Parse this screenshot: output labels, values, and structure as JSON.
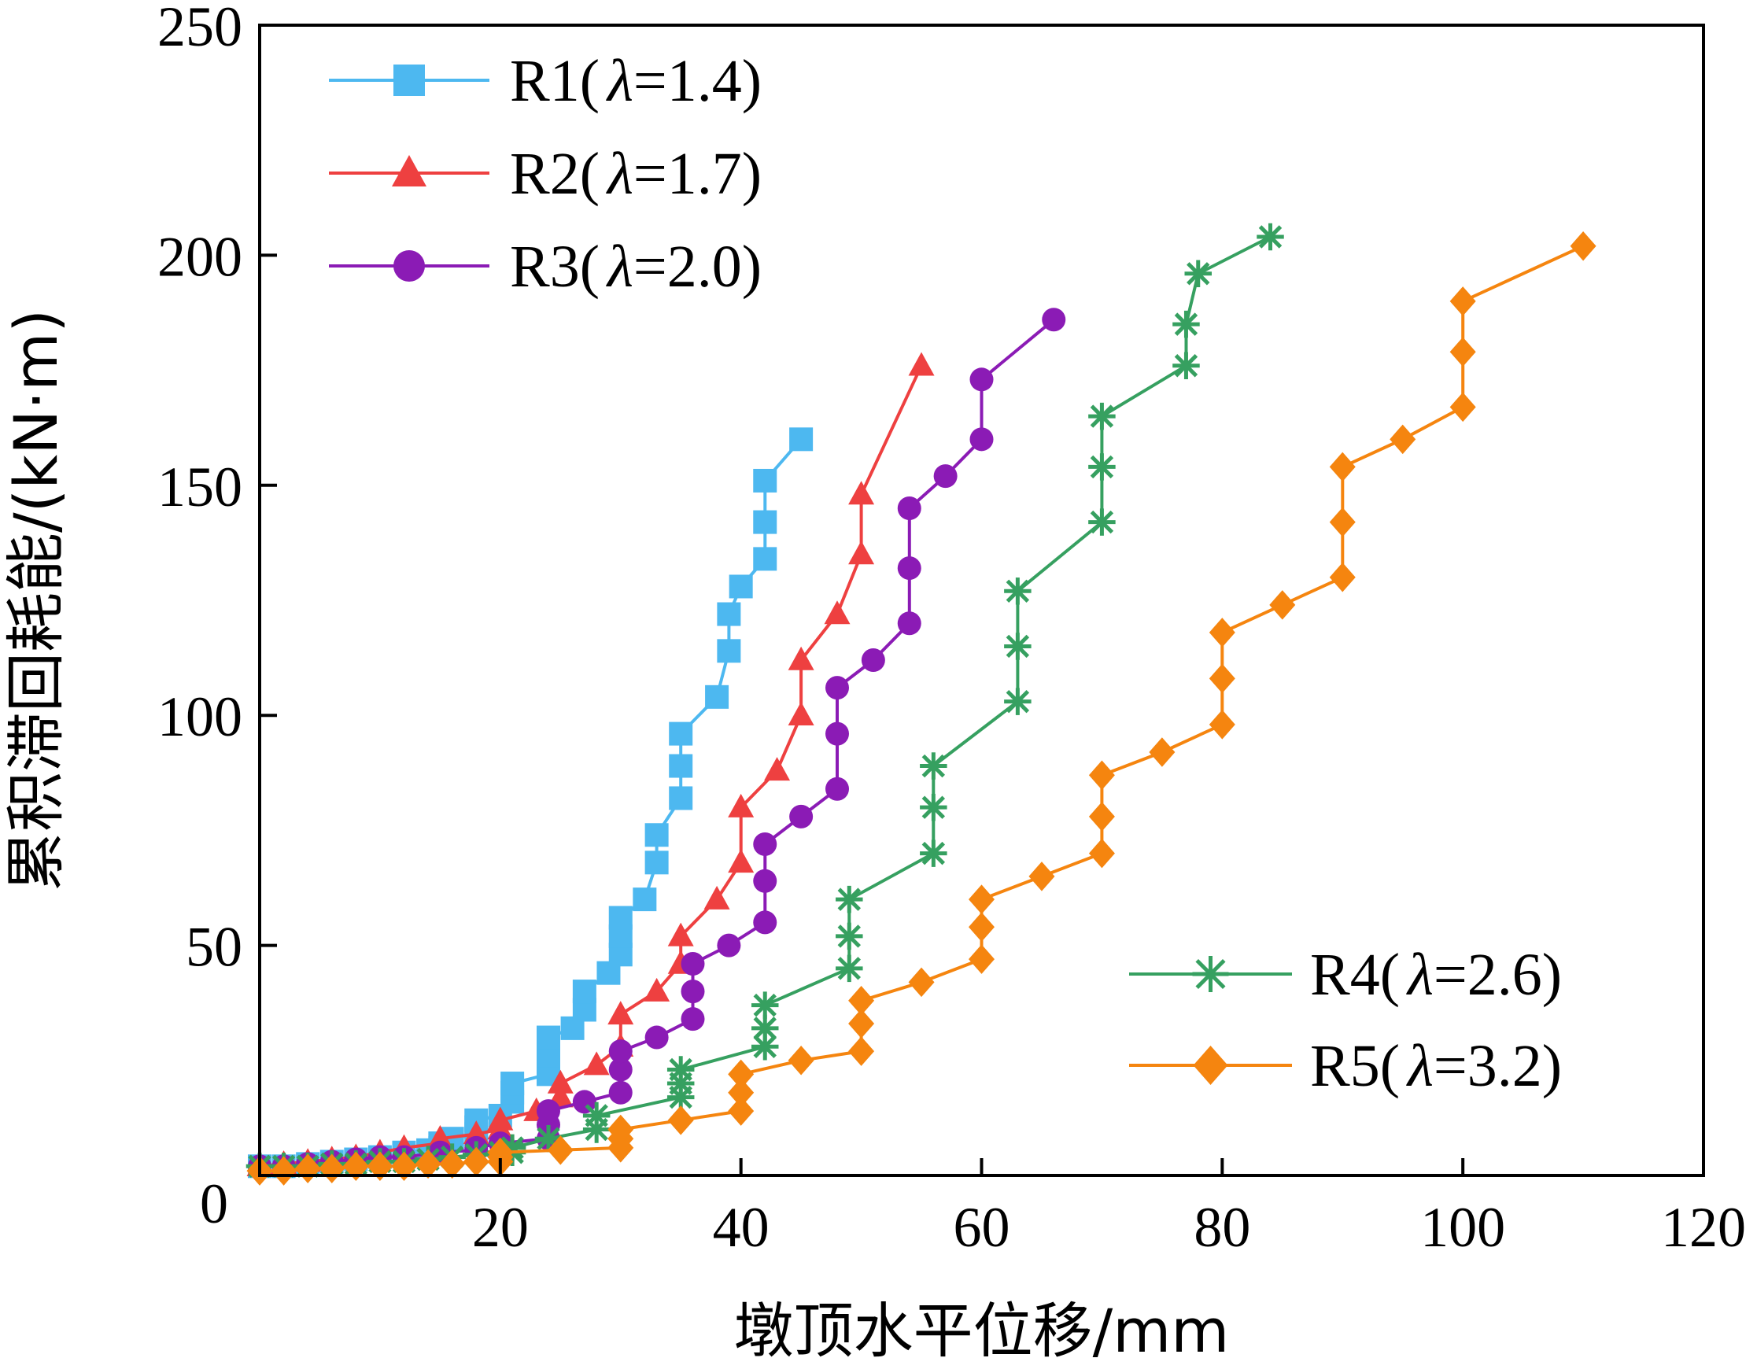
{
  "chart_data": {
    "type": "line",
    "xlabel": "墩顶水平位移/mm",
    "ylabel": "累积滞回耗能/(kN·m)",
    "xlim": [
      0,
      120
    ],
    "ylim": [
      0,
      250
    ],
    "xticks": [
      20,
      40,
      60,
      80,
      100,
      120
    ],
    "yticks": [
      0,
      50,
      100,
      150,
      200,
      250
    ],
    "grid": false,
    "legend_groups": [
      "top-left",
      "bottom-right"
    ],
    "series": [
      {
        "name_prefix": "R1(",
        "name_param": "λ",
        "name_suffix": "=1.4)",
        "color": "#4db8f0",
        "marker": "square",
        "legend_group": "top-left",
        "x": [
          0,
          2,
          4,
          6,
          8,
          10,
          12,
          12,
          14,
          15,
          15,
          16,
          18,
          18,
          18,
          20,
          21,
          21,
          21,
          24,
          24,
          24,
          26,
          27,
          27,
          29,
          30,
          30,
          30,
          32,
          33,
          33,
          35,
          35,
          35,
          38,
          39,
          39,
          40,
          42,
          42,
          42,
          45
        ],
        "y": [
          2,
          2,
          2.5,
          3,
          3.5,
          4,
          4.5,
          5,
          5.5,
          6,
          7,
          8,
          9,
          10.5,
          12,
          13,
          16,
          18,
          20,
          22,
          26,
          30,
          32,
          36,
          40,
          44,
          48,
          52,
          56,
          60,
          68,
          74,
          82,
          89,
          96,
          104,
          114,
          122,
          128,
          134,
          142,
          151,
          160
        ]
      },
      {
        "name_prefix": "R2(",
        "name_param": "λ",
        "name_suffix": "=1.7)",
        "color": "#ee4040",
        "marker": "triangle",
        "legend_group": "top-left",
        "x": [
          0,
          2,
          4,
          6,
          8,
          10,
          12,
          15,
          15,
          18,
          20,
          20,
          23,
          25,
          25,
          28,
          30,
          30,
          33,
          35,
          35,
          38,
          40,
          40,
          43,
          45,
          45,
          48,
          50,
          50,
          55
        ],
        "y": [
          2,
          2.5,
          3,
          3.5,
          4,
          5,
          6,
          7,
          8,
          9,
          10,
          12,
          14,
          17,
          20,
          24,
          28,
          35,
          40,
          46,
          52,
          60,
          68,
          80,
          88,
          100,
          112,
          122,
          135,
          148,
          176
        ]
      },
      {
        "name_prefix": "R3(",
        "name_param": "λ",
        "name_suffix": "=2.0)",
        "color": "#8b1bb5",
        "marker": "circle",
        "legend_group": "top-left",
        "x": [
          0,
          2,
          4,
          6,
          8,
          10,
          12,
          15,
          18,
          18,
          20,
          24,
          24,
          24,
          27,
          30,
          30,
          30,
          33,
          36,
          36,
          36,
          39,
          42,
          42,
          42,
          45,
          48,
          48,
          48,
          51,
          54,
          54,
          54,
          57,
          60,
          60,
          66
        ],
        "y": [
          2,
          2,
          2.5,
          3,
          3.5,
          4,
          4,
          5,
          5.5,
          6,
          7,
          8,
          11,
          14,
          16,
          18,
          23,
          27,
          30,
          34,
          40,
          46,
          50,
          55,
          64,
          72,
          78,
          84,
          96,
          106,
          112,
          120,
          132,
          145,
          152,
          160,
          173,
          186
        ]
      },
      {
        "name_prefix": "R4(",
        "name_param": "λ",
        "name_suffix": "=2.6)",
        "color": "#36a060",
        "marker": "asterisk",
        "legend_group": "bottom-right",
        "x": [
          0,
          2,
          4,
          6,
          8,
          10,
          12,
          14,
          16,
          18,
          20,
          21,
          21,
          24,
          28,
          28,
          35,
          35,
          35,
          42,
          42,
          42,
          49,
          49,
          49,
          56,
          56,
          56,
          63,
          63,
          63,
          70,
          70,
          70,
          77,
          77,
          78,
          84
        ],
        "y": [
          2,
          2,
          2,
          2.5,
          2.5,
          3,
          3,
          3.5,
          4,
          4.5,
          5,
          5,
          6,
          8,
          10,
          13,
          17,
          20,
          23,
          28,
          32,
          37,
          45,
          52,
          60,
          70,
          80,
          89,
          103,
          115,
          127,
          142,
          154,
          165,
          176,
          185,
          196,
          204
        ]
      },
      {
        "name_prefix": "R5(",
        "name_param": "λ",
        "name_suffix": "=3.2)",
        "color": "#f5850f",
        "marker": "diamond",
        "legend_group": "bottom-right",
        "x": [
          0,
          2,
          4,
          6,
          8,
          10,
          12,
          14,
          16,
          18,
          20,
          20,
          20,
          25,
          30,
          30,
          30,
          35,
          40,
          40,
          40,
          45,
          50,
          50,
          50,
          55,
          60,
          60,
          60,
          65,
          70,
          70,
          70,
          75,
          80,
          80,
          80,
          85,
          90,
          90,
          90,
          95,
          100,
          100,
          100,
          110
        ],
        "y": [
          1,
          1,
          1.5,
          1.5,
          2,
          2,
          2,
          2.5,
          2.5,
          3,
          3,
          4,
          5,
          5.5,
          6,
          8,
          10,
          12,
          14,
          18,
          22,
          25,
          27,
          33,
          38,
          42,
          47,
          54,
          60,
          65,
          70,
          78,
          87,
          92,
          98,
          108,
          118,
          124,
          130,
          142,
          154,
          160,
          167,
          179,
          190,
          202
        ]
      }
    ]
  }
}
